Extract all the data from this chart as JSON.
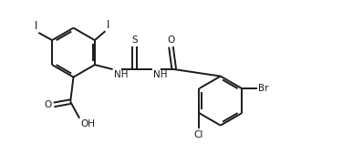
{
  "bg": "#ffffff",
  "lc": "#1a1a1a",
  "lw": 1.4,
  "fs": 7.5,
  "fig_w": 3.98,
  "fig_h": 1.58,
  "dpi": 100,
  "xlim": [
    -0.3,
    10.5
  ],
  "ylim": [
    -2.8,
    2.0
  ]
}
